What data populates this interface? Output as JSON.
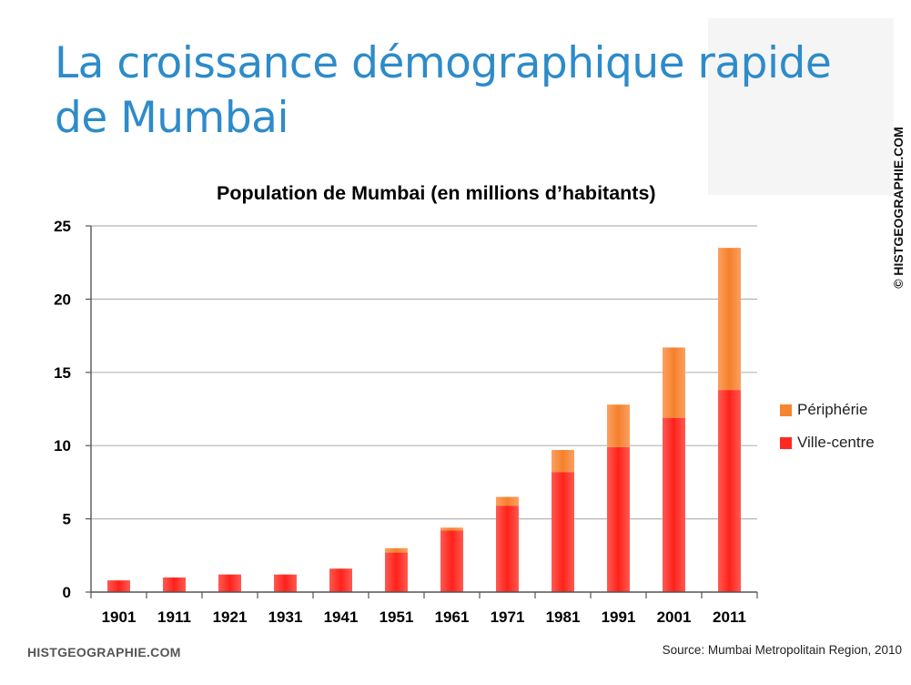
{
  "slide": {
    "title_line1": "La croissance démographique rapide",
    "title_line2": "de Mumbai",
    "copyright": "© HISTGEOGRAPHIE.COM",
    "footer_brand": "HISTGEOGRAPHIE.COM",
    "source": "Source: Mumbai Metropolitain Region, 2010"
  },
  "chart_data": {
    "type": "bar",
    "stacked": true,
    "title": "Population de Mumbai (en millions d’habitants)",
    "xlabel": "",
    "ylabel": "",
    "ylim": [
      0,
      25
    ],
    "yticks": [
      0,
      5,
      10,
      15,
      20,
      25
    ],
    "grid": true,
    "legend_position": "right",
    "categories": [
      "1901",
      "1911",
      "1921",
      "1931",
      "1941",
      "1951",
      "1961",
      "1971",
      "1981",
      "1991",
      "2001",
      "2011"
    ],
    "series": [
      {
        "name": "Ville-centre",
        "color": "#ff2a22",
        "values": [
          0.8,
          1.0,
          1.2,
          1.2,
          1.6,
          2.7,
          4.2,
          5.9,
          8.2,
          9.9,
          11.9,
          13.8
        ]
      },
      {
        "name": "Périphérie",
        "color": "#f7842f",
        "values": [
          0,
          0,
          0,
          0,
          0,
          0.3,
          0.2,
          0.6,
          1.5,
          2.9,
          4.8,
          9.7
        ]
      }
    ],
    "legend_order": [
      "Périphérie",
      "Ville-centre"
    ]
  }
}
